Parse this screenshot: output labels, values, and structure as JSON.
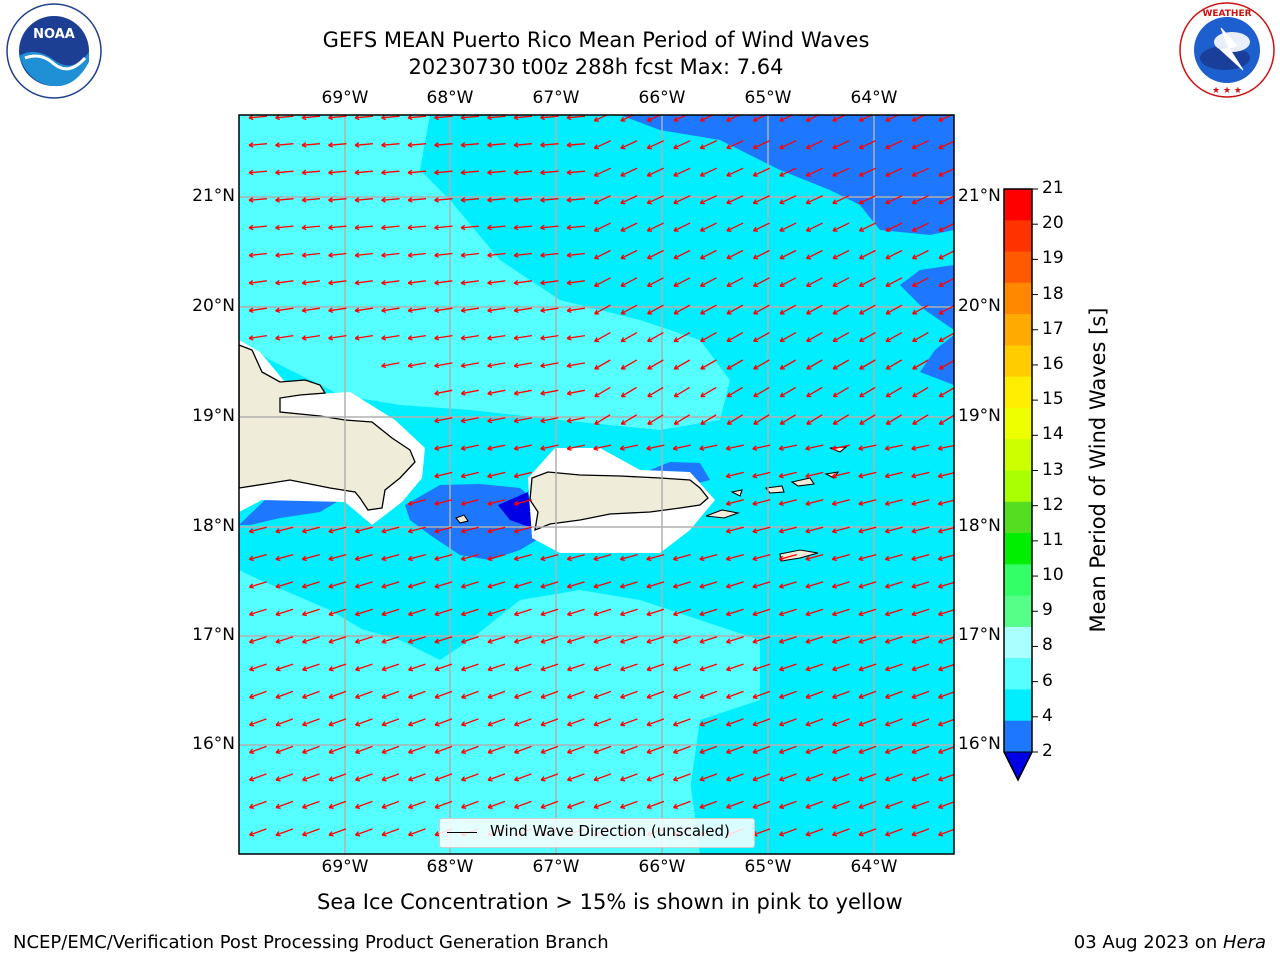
{
  "header": {
    "title_line1": "GEFS MEAN Puerto Rico Mean Period of Wind Waves",
    "title_line2": "20230730 t00z 288h fcst   Max: 7.64"
  },
  "logos": {
    "left": {
      "text": "NOAA",
      "ring_text": "NATIONAL OCEANIC AND ATMOSPHERIC ADMINISTRATION · U.S. DEPARTMENT OF COMMERCE"
    },
    "right": {
      "ring_text": "NATIONAL WEATHER SERVICE"
    }
  },
  "map": {
    "lon_labels": [
      "69°W",
      "68°W",
      "67°W",
      "66°W",
      "65°W",
      "64°W"
    ],
    "lat_labels": [
      "21°N",
      "20°N",
      "19°N",
      "18°N",
      "17°N",
      "16°N"
    ],
    "legend_label": "Wind Wave Direction (unscaled)",
    "colors": {
      "ocean_light": "#55ffff",
      "ocean_cyan": "#00eeff",
      "ocean_blue": "#1e78ff",
      "ocean_dark": "#0000e6",
      "land": "#efecd9",
      "arrow": "#ff0000",
      "grid": "#b0b0b0"
    }
  },
  "colorbar": {
    "label": "Mean Period of Wind Waves [s]",
    "ticks": [
      "21",
      "20",
      "19",
      "18",
      "17",
      "16",
      "15",
      "14",
      "13",
      "12",
      "11",
      "10",
      "9",
      "8",
      "6",
      "4",
      "2"
    ],
    "colors_top_to_bottom": [
      "#ff0000",
      "#ff3300",
      "#ff5a00",
      "#ff8800",
      "#ffaa00",
      "#ffcc00",
      "#ffee00",
      "#eeff00",
      "#ccff00",
      "#aaff00",
      "#55dd22",
      "#00ee00",
      "#33ff66",
      "#55ff88",
      "#aaffff",
      "#55ffff",
      "#00eeff",
      "#1e78ff"
    ],
    "extend_color": "#0000e6"
  },
  "notes": {
    "sea_ice": "Sea Ice Concentration > 15% is shown in pink to yellow"
  },
  "footer": {
    "left": "NCEP/EMC/Verification Post Processing Product Generation Branch",
    "right_date": "03 Aug 2023 on ",
    "right_host": "Hera"
  }
}
